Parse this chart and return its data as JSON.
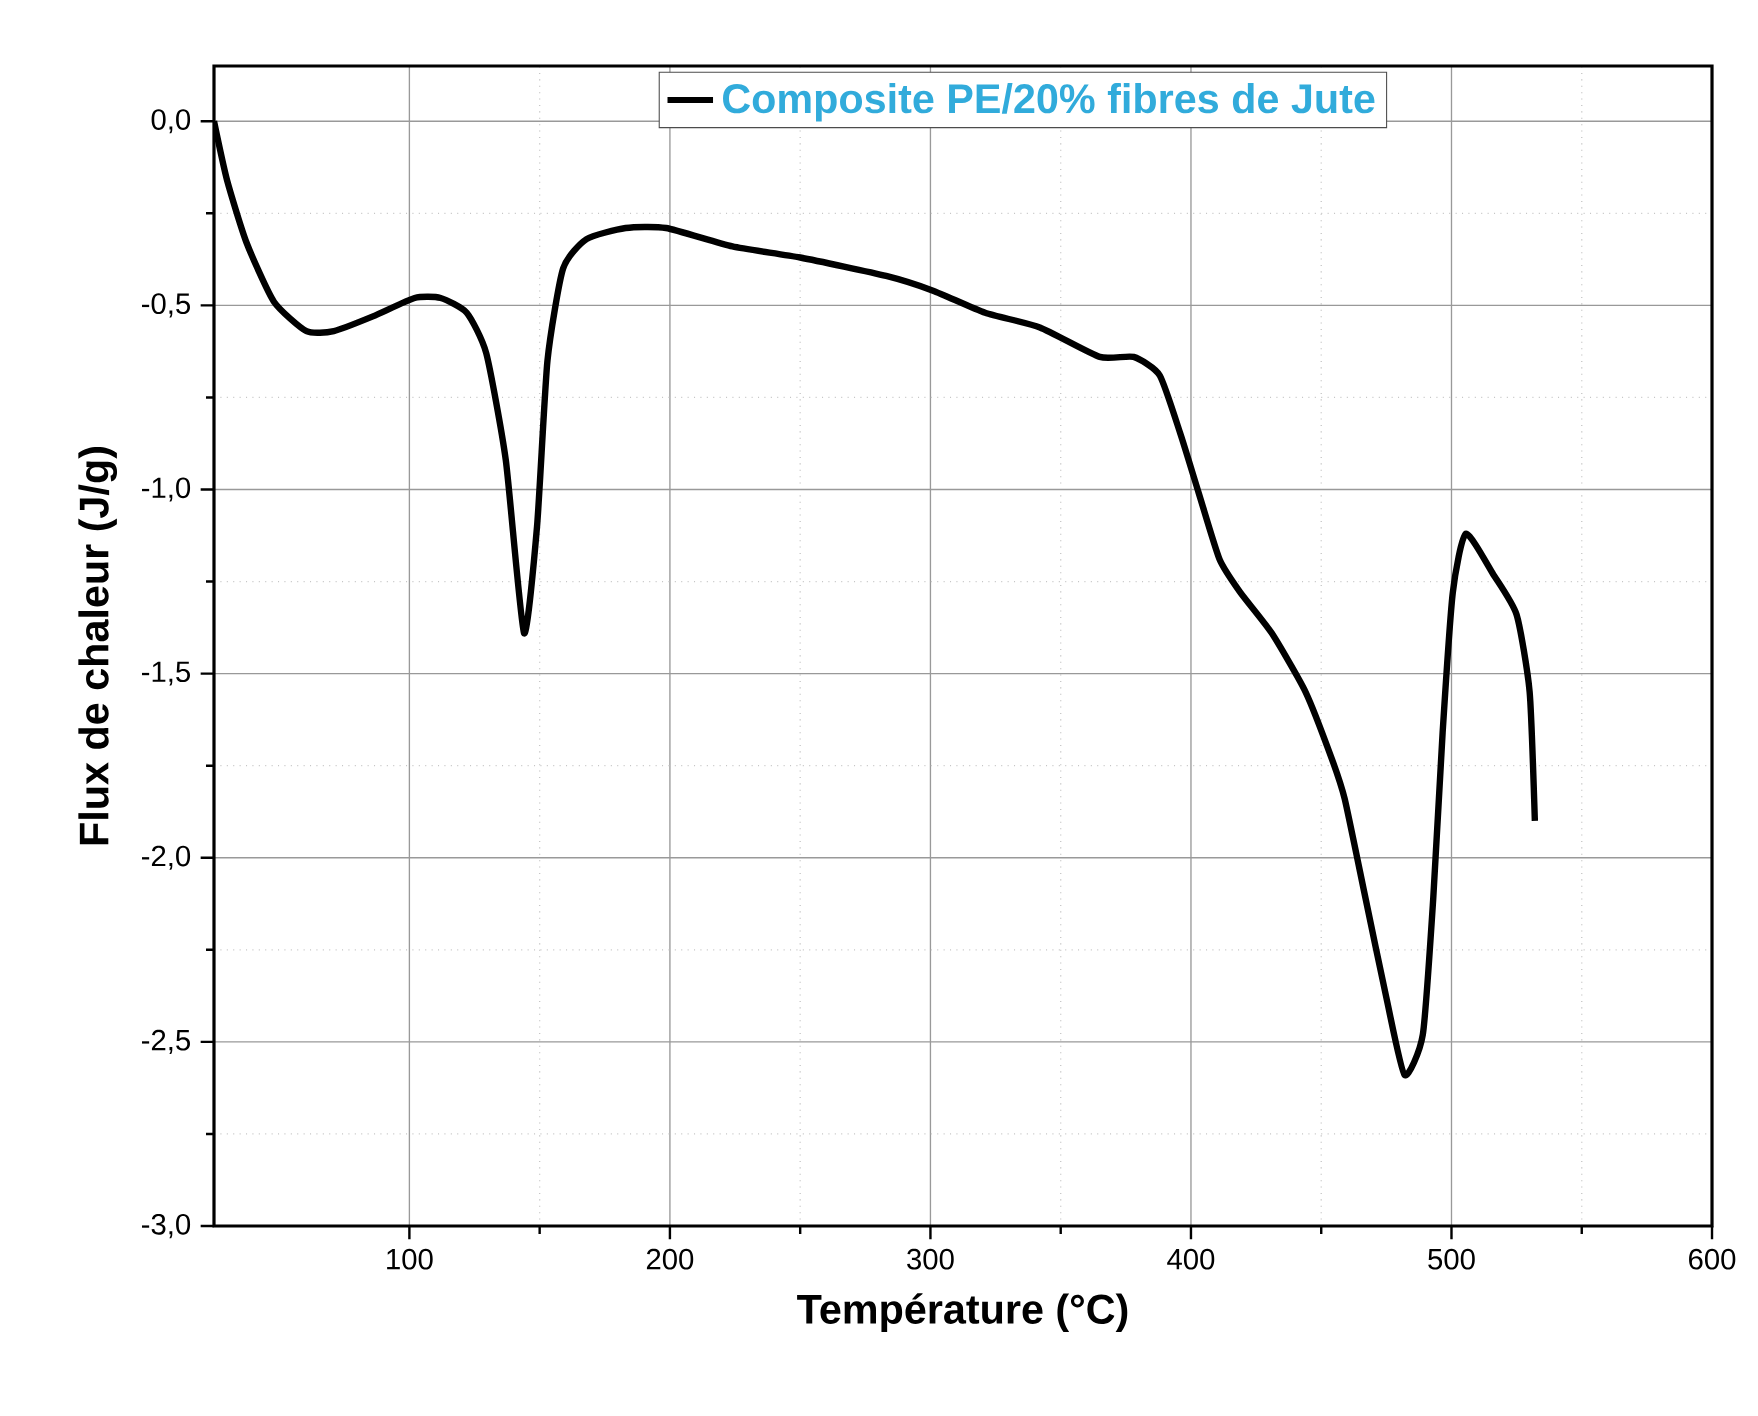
{
  "chart_data": {
    "type": "line",
    "xlabel": "Température (°C)",
    "ylabel": "Flux de chaleur (J/g)",
    "xlim": [
      25,
      600
    ],
    "ylim": [
      -3.0,
      0.15
    ],
    "xticks": [
      100,
      200,
      300,
      400,
      500,
      600
    ],
    "yticks": [
      {
        "value": 0,
        "label": "0,0"
      },
      {
        "value": -0.5,
        "label": "-0,5"
      },
      {
        "value": -1.0,
        "label": "-1,0"
      },
      {
        "value": -1.5,
        "label": "-1,5"
      },
      {
        "value": -2.0,
        "label": "-2,0"
      },
      {
        "value": -2.5,
        "label": "-2,5"
      },
      {
        "value": -3.0,
        "label": "-3,0"
      }
    ],
    "grid": true,
    "legend": "top",
    "marker": "none",
    "line_style": "solid",
    "series": [
      {
        "name": "Composite PE/20% fibres de Jute",
        "color": "#000000",
        "x": [
          25,
          30,
          37.5,
          48,
          60.5,
          71,
          86,
          102,
          112,
          122,
          129.5,
          137,
          144,
          149,
          153,
          159,
          168,
          183,
          198.5,
          224,
          250,
          283,
          301,
          321,
          342,
          365,
          378,
          388,
          396,
          403,
          411,
          419,
          431,
          444,
          454,
          459,
          467,
          475,
          482,
          489,
          493,
          496.6,
          500.5,
          505.5,
          516,
          525,
          530,
          532
        ],
        "values": [
          0.0,
          -0.16,
          -0.33,
          -0.49,
          -0.57,
          -0.57,
          -0.53,
          -0.48,
          -0.48,
          -0.52,
          -0.63,
          -0.92,
          -1.39,
          -1.1,
          -0.65,
          -0.4,
          -0.32,
          -0.29,
          -0.29,
          -0.34,
          -0.37,
          -0.42,
          -0.46,
          -0.52,
          -0.56,
          -0.64,
          -0.64,
          -0.69,
          -0.85,
          -1.01,
          -1.19,
          -1.28,
          -1.39,
          -1.55,
          -1.73,
          -1.84,
          -2.11,
          -2.38,
          -2.59,
          -2.48,
          -2.11,
          -1.66,
          -1.28,
          -1.12,
          -1.23,
          -1.34,
          -1.55,
          -1.9
        ]
      }
    ]
  }
}
